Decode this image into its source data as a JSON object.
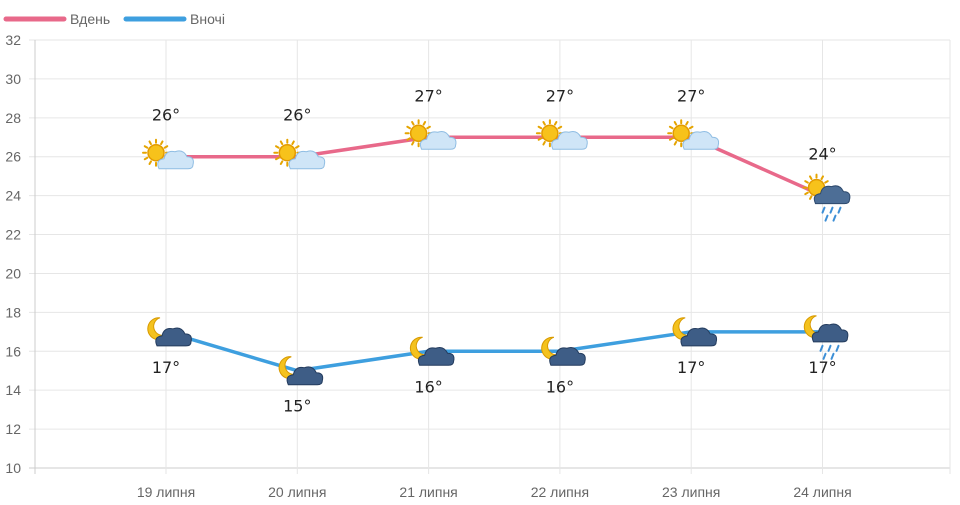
{
  "chart_data": {
    "type": "line",
    "categories": [
      "19 липня",
      "20 липня",
      "21 липня",
      "22 липня",
      "23 липня",
      "24 липня"
    ],
    "ylim": [
      10,
      32
    ],
    "yticks": [
      "10",
      "12",
      "14",
      "16",
      "18",
      "20",
      "22",
      "24",
      "26",
      "28",
      "30",
      "32"
    ],
    "grid": true,
    "legend_position": "top-left",
    "series": [
      {
        "name": "Вдень",
        "color": "#e8698a",
        "values": [
          26,
          26,
          27,
          27,
          27,
          24
        ],
        "labels": [
          "26°",
          "26°",
          "27°",
          "27°",
          "27°",
          "24°"
        ],
        "icons": [
          "sun-cloud-icon",
          "sun-cloud-icon",
          "sun-cloud-icon",
          "sun-cloud-icon",
          "sun-cloud-icon",
          "sun-rain-cloud-icon"
        ]
      },
      {
        "name": "Вночі",
        "color": "#3e9fdf",
        "values": [
          17,
          15,
          16,
          16,
          17,
          17
        ],
        "labels": [
          "17°",
          "15°",
          "16°",
          "16°",
          "17°",
          "17°"
        ],
        "icons": [
          "moon-cloud-icon",
          "moon-cloud-icon",
          "moon-cloud-icon",
          "moon-cloud-icon",
          "moon-cloud-icon",
          "moon-rain-cloud-icon"
        ]
      }
    ]
  }
}
